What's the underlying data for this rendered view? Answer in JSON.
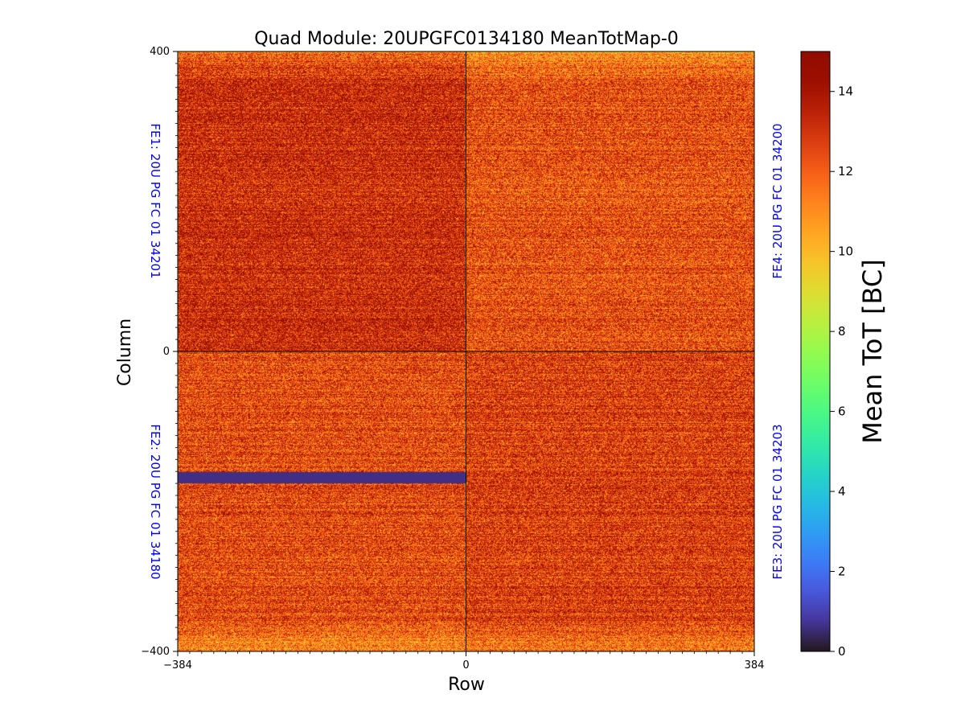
{
  "chart_data": {
    "type": "heatmap",
    "title": "Quad Module: 20UPGFC0134180 MeanTotMap-0",
    "xlabel": "Row",
    "ylabel": "Column",
    "xlim": [
      -384,
      384
    ],
    "ylim": [
      -400,
      400
    ],
    "x_ticks": [
      -384,
      0,
      384
    ],
    "x_tick_labels": [
      "−384",
      "0",
      "384"
    ],
    "y_ticks": [
      -400,
      0,
      400
    ],
    "y_tick_labels": [
      "−400",
      "0",
      "400"
    ],
    "colorbar": {
      "label": "Mean ToT [BC]",
      "range": [
        0,
        15
      ],
      "ticks": [
        0,
        2,
        4,
        6,
        8,
        10,
        12,
        14
      ],
      "colormap": "turbo"
    },
    "chip_labels": {
      "fe1": "FE1: 20U PG FC 01 34201",
      "fe2": "FE2: 20U PG FC 01 34180",
      "fe3": "FE3: 20U PG FC 01 34203",
      "fe4": "FE4: 20U PG FC 01 34200"
    },
    "label_color": "#0000ff",
    "quadrants": [
      {
        "name": "fe1",
        "x": [
          -384,
          0
        ],
        "y": [
          0,
          400
        ],
        "typical_tot": 13.2
      },
      {
        "name": "fe4",
        "x": [
          0,
          384
        ],
        "y": [
          0,
          400
        ],
        "typical_tot": 12.3
      },
      {
        "name": "fe2",
        "x": [
          -384,
          0
        ],
        "y": [
          -400,
          0
        ],
        "typical_tot": 12.4
      },
      {
        "name": "fe3",
        "x": [
          0,
          384
        ],
        "y": [
          -400,
          0
        ],
        "typical_tot": 12.7
      }
    ],
    "dead_band": {
      "x": [
        -384,
        0
      ],
      "y": [
        -176,
        -161
      ],
      "tot": 0
    }
  }
}
